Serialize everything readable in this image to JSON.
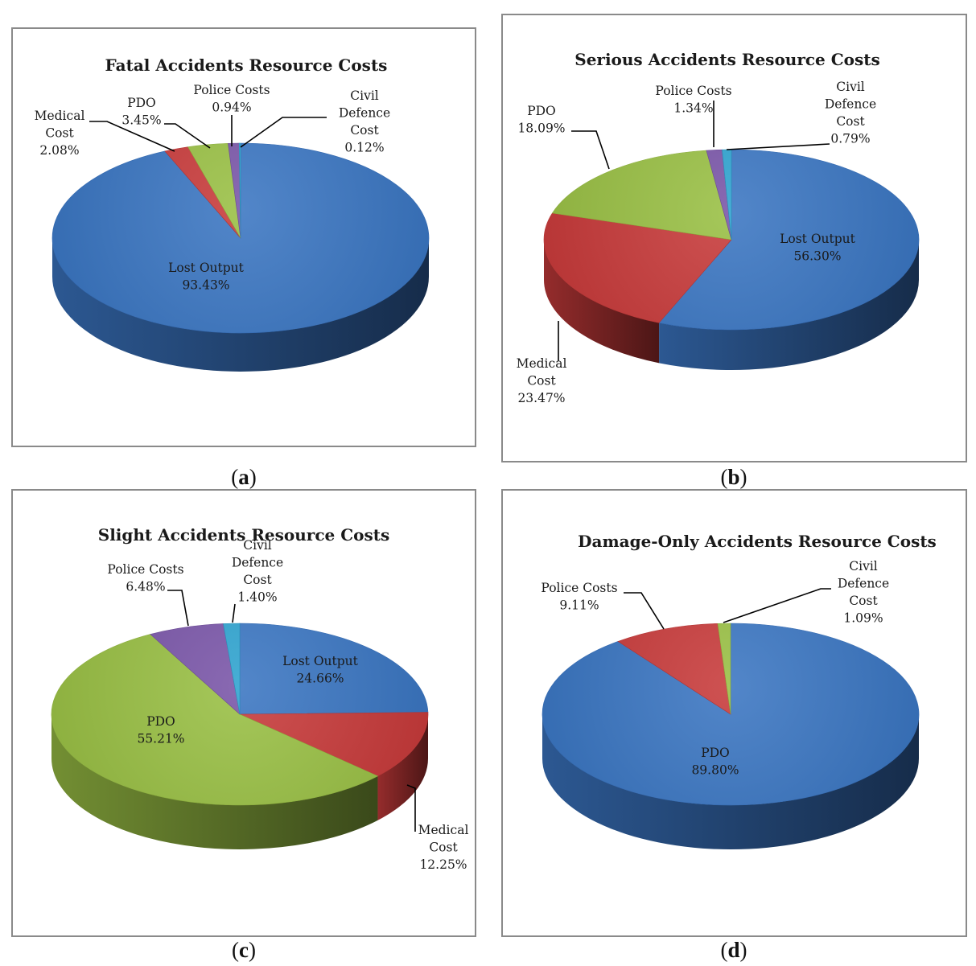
{
  "captions": {
    "a": {
      "open": "(",
      "letter": "a",
      "close": ")"
    },
    "b": {
      "open": "(",
      "letter": "b",
      "close": ")"
    },
    "c": {
      "open": "(",
      "letter": "c",
      "close": ")"
    },
    "d": {
      "open": "(",
      "letter": "d",
      "close": ")"
    }
  },
  "chart_data": [
    {
      "type": "pie",
      "title": "Fatal Accidents Resource Costs",
      "slices": [
        {
          "name": "Lost Output",
          "value": 93.43,
          "label_lines": [
            "Lost Output",
            "93.43%"
          ],
          "color": "#3a75c2"
        },
        {
          "name": "Medical Cost",
          "value": 2.08,
          "label_lines": [
            "Medical",
            "Cost",
            "2.08%"
          ],
          "color": "#c73a3a"
        },
        {
          "name": "PDO",
          "value": 3.45,
          "label_lines": [
            "PDO",
            "3.45%"
          ],
          "color": "#99bf44"
        },
        {
          "name": "Police Costs",
          "value": 0.94,
          "label_lines": [
            "Police Costs",
            "0.94%"
          ],
          "color": "#7955a7"
        },
        {
          "name": "Civil Defence Cost",
          "value": 0.12,
          "label_lines": [
            "Civil",
            "Defence",
            "Cost",
            "0.12%"
          ],
          "color": "#2ea3cf"
        }
      ]
    },
    {
      "type": "pie",
      "title": "Serious Accidents Resource Costs",
      "slices": [
        {
          "name": "Lost Output",
          "value": 56.3,
          "label_lines": [
            "Lost Output",
            "56.30%"
          ],
          "color": "#3a75c2"
        },
        {
          "name": "Medical Cost",
          "value": 23.47,
          "label_lines": [
            "Medical",
            "Cost",
            "23.47%"
          ],
          "color": "#c73a3a"
        },
        {
          "name": "PDO",
          "value": 18.09,
          "label_lines": [
            "PDO",
            "18.09%"
          ],
          "color": "#99bf44"
        },
        {
          "name": "Police Costs",
          "value": 1.34,
          "label_lines": [
            "Police Costs",
            "1.34%"
          ],
          "color": "#7955a7"
        },
        {
          "name": "Civil Defence Cost",
          "value": 0.79,
          "label_lines": [
            "Civil",
            "Defence",
            "Cost",
            "0.79%"
          ],
          "color": "#2ea3cf"
        }
      ]
    },
    {
      "type": "pie",
      "title": "Slight Accidents Resource Costs",
      "slices": [
        {
          "name": "Lost Output",
          "value": 24.66,
          "label_lines": [
            "Lost Output",
            "24.66%"
          ],
          "color": "#3a75c2"
        },
        {
          "name": "Medical Cost",
          "value": 12.25,
          "label_lines": [
            "Medical",
            "Cost",
            "12.25%"
          ],
          "color": "#c73a3a"
        },
        {
          "name": "PDO",
          "value": 55.21,
          "label_lines": [
            "PDO",
            "55.21%"
          ],
          "color": "#99bf44"
        },
        {
          "name": "Police Costs",
          "value": 6.48,
          "label_lines": [
            "Police Costs",
            "6.48%"
          ],
          "color": "#7955a7"
        },
        {
          "name": "Civil Defence Cost",
          "value": 1.4,
          "label_lines": [
            "Civil",
            "Defence",
            "Cost",
            "1.40%"
          ],
          "color": "#2ea3cf"
        }
      ]
    },
    {
      "type": "pie",
      "title": "Damage-Only Accidents Resource Costs",
      "slices": [
        {
          "name": "PDO",
          "value": 89.8,
          "label_lines": [
            "PDO",
            "89.80%"
          ],
          "color": "#3a75c2"
        },
        {
          "name": "Police Costs",
          "value": 9.11,
          "label_lines": [
            "Police Costs",
            "9.11%"
          ],
          "color": "#c73a3a"
        },
        {
          "name": "Civil Defence Cost",
          "value": 1.09,
          "label_lines": [
            "Civil",
            "Defence",
            "Cost",
            "1.09%"
          ],
          "color": "#99bf44"
        }
      ]
    }
  ]
}
